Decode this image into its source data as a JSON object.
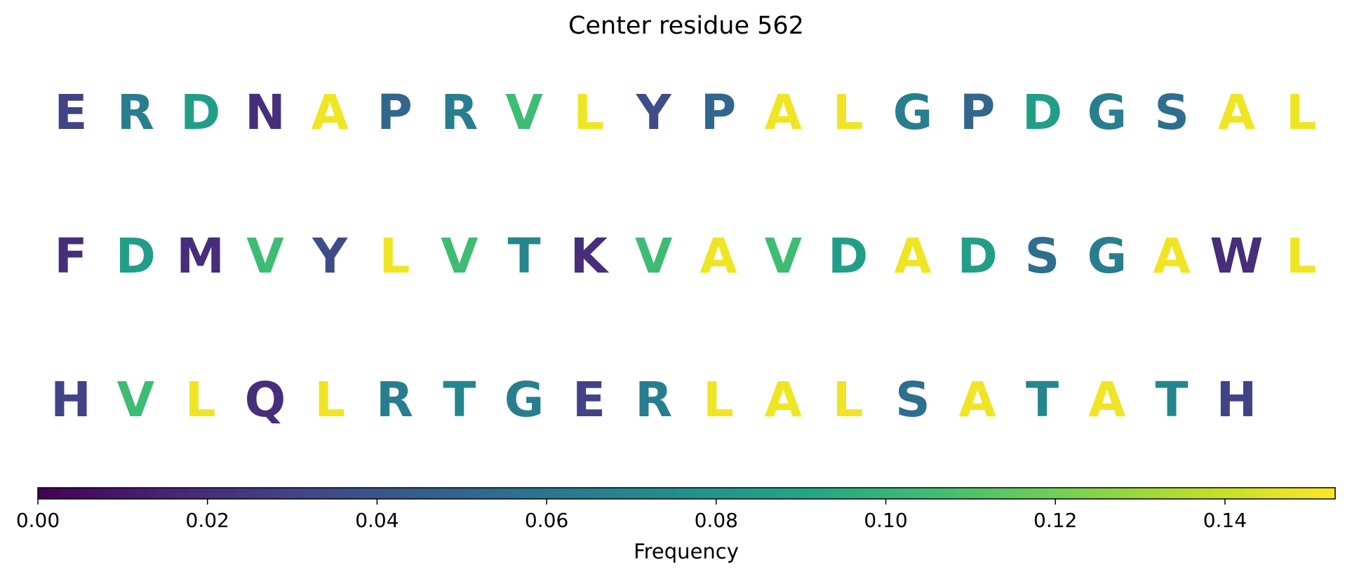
{
  "chart_data": {
    "type": "heatmap",
    "title": "Center residue 562",
    "colormap": "viridis",
    "rows": [
      {
        "residues": [
          "E",
          "R",
          "D",
          "N",
          "A",
          "P",
          "R",
          "V",
          "L",
          "Y",
          "P",
          "A",
          "L",
          "G",
          "P",
          "D",
          "G",
          "S",
          "A",
          "L"
        ],
        "values": [
          0.03,
          0.065,
          0.085,
          0.02,
          0.15,
          0.05,
          0.065,
          0.105,
          0.15,
          0.035,
          0.05,
          0.15,
          0.15,
          0.065,
          0.05,
          0.085,
          0.065,
          0.055,
          0.15,
          0.15
        ]
      },
      {
        "residues": [
          "F",
          "D",
          "M",
          "V",
          "Y",
          "L",
          "V",
          "T",
          "K",
          "V",
          "A",
          "V",
          "D",
          "A",
          "D",
          "S",
          "G",
          "A",
          "W",
          "L"
        ],
        "values": [
          0.02,
          0.085,
          0.02,
          0.105,
          0.035,
          0.15,
          0.105,
          0.07,
          0.02,
          0.105,
          0.15,
          0.105,
          0.085,
          0.15,
          0.085,
          0.055,
          0.065,
          0.15,
          0.02,
          0.15
        ]
      },
      {
        "residues": [
          "H",
          "V",
          "L",
          "Q",
          "L",
          "R",
          "T",
          "G",
          "E",
          "R",
          "L",
          "A",
          "L",
          "S",
          "A",
          "T",
          "A",
          "T",
          "H"
        ],
        "values": [
          0.03,
          0.105,
          0.15,
          0.02,
          0.15,
          0.065,
          0.07,
          0.065,
          0.03,
          0.065,
          0.15,
          0.15,
          0.15,
          0.055,
          0.15,
          0.07,
          0.15,
          0.07,
          0.03
        ]
      }
    ],
    "colorbar": {
      "label": "Frequency",
      "range": [
        0.0,
        0.153
      ],
      "ticks": [
        0.0,
        0.02,
        0.04,
        0.06,
        0.08,
        0.1,
        0.12,
        0.14
      ],
      "tick_labels": [
        "0.00",
        "0.02",
        "0.04",
        "0.06",
        "0.08",
        "0.10",
        "0.12",
        "0.14"
      ]
    }
  }
}
